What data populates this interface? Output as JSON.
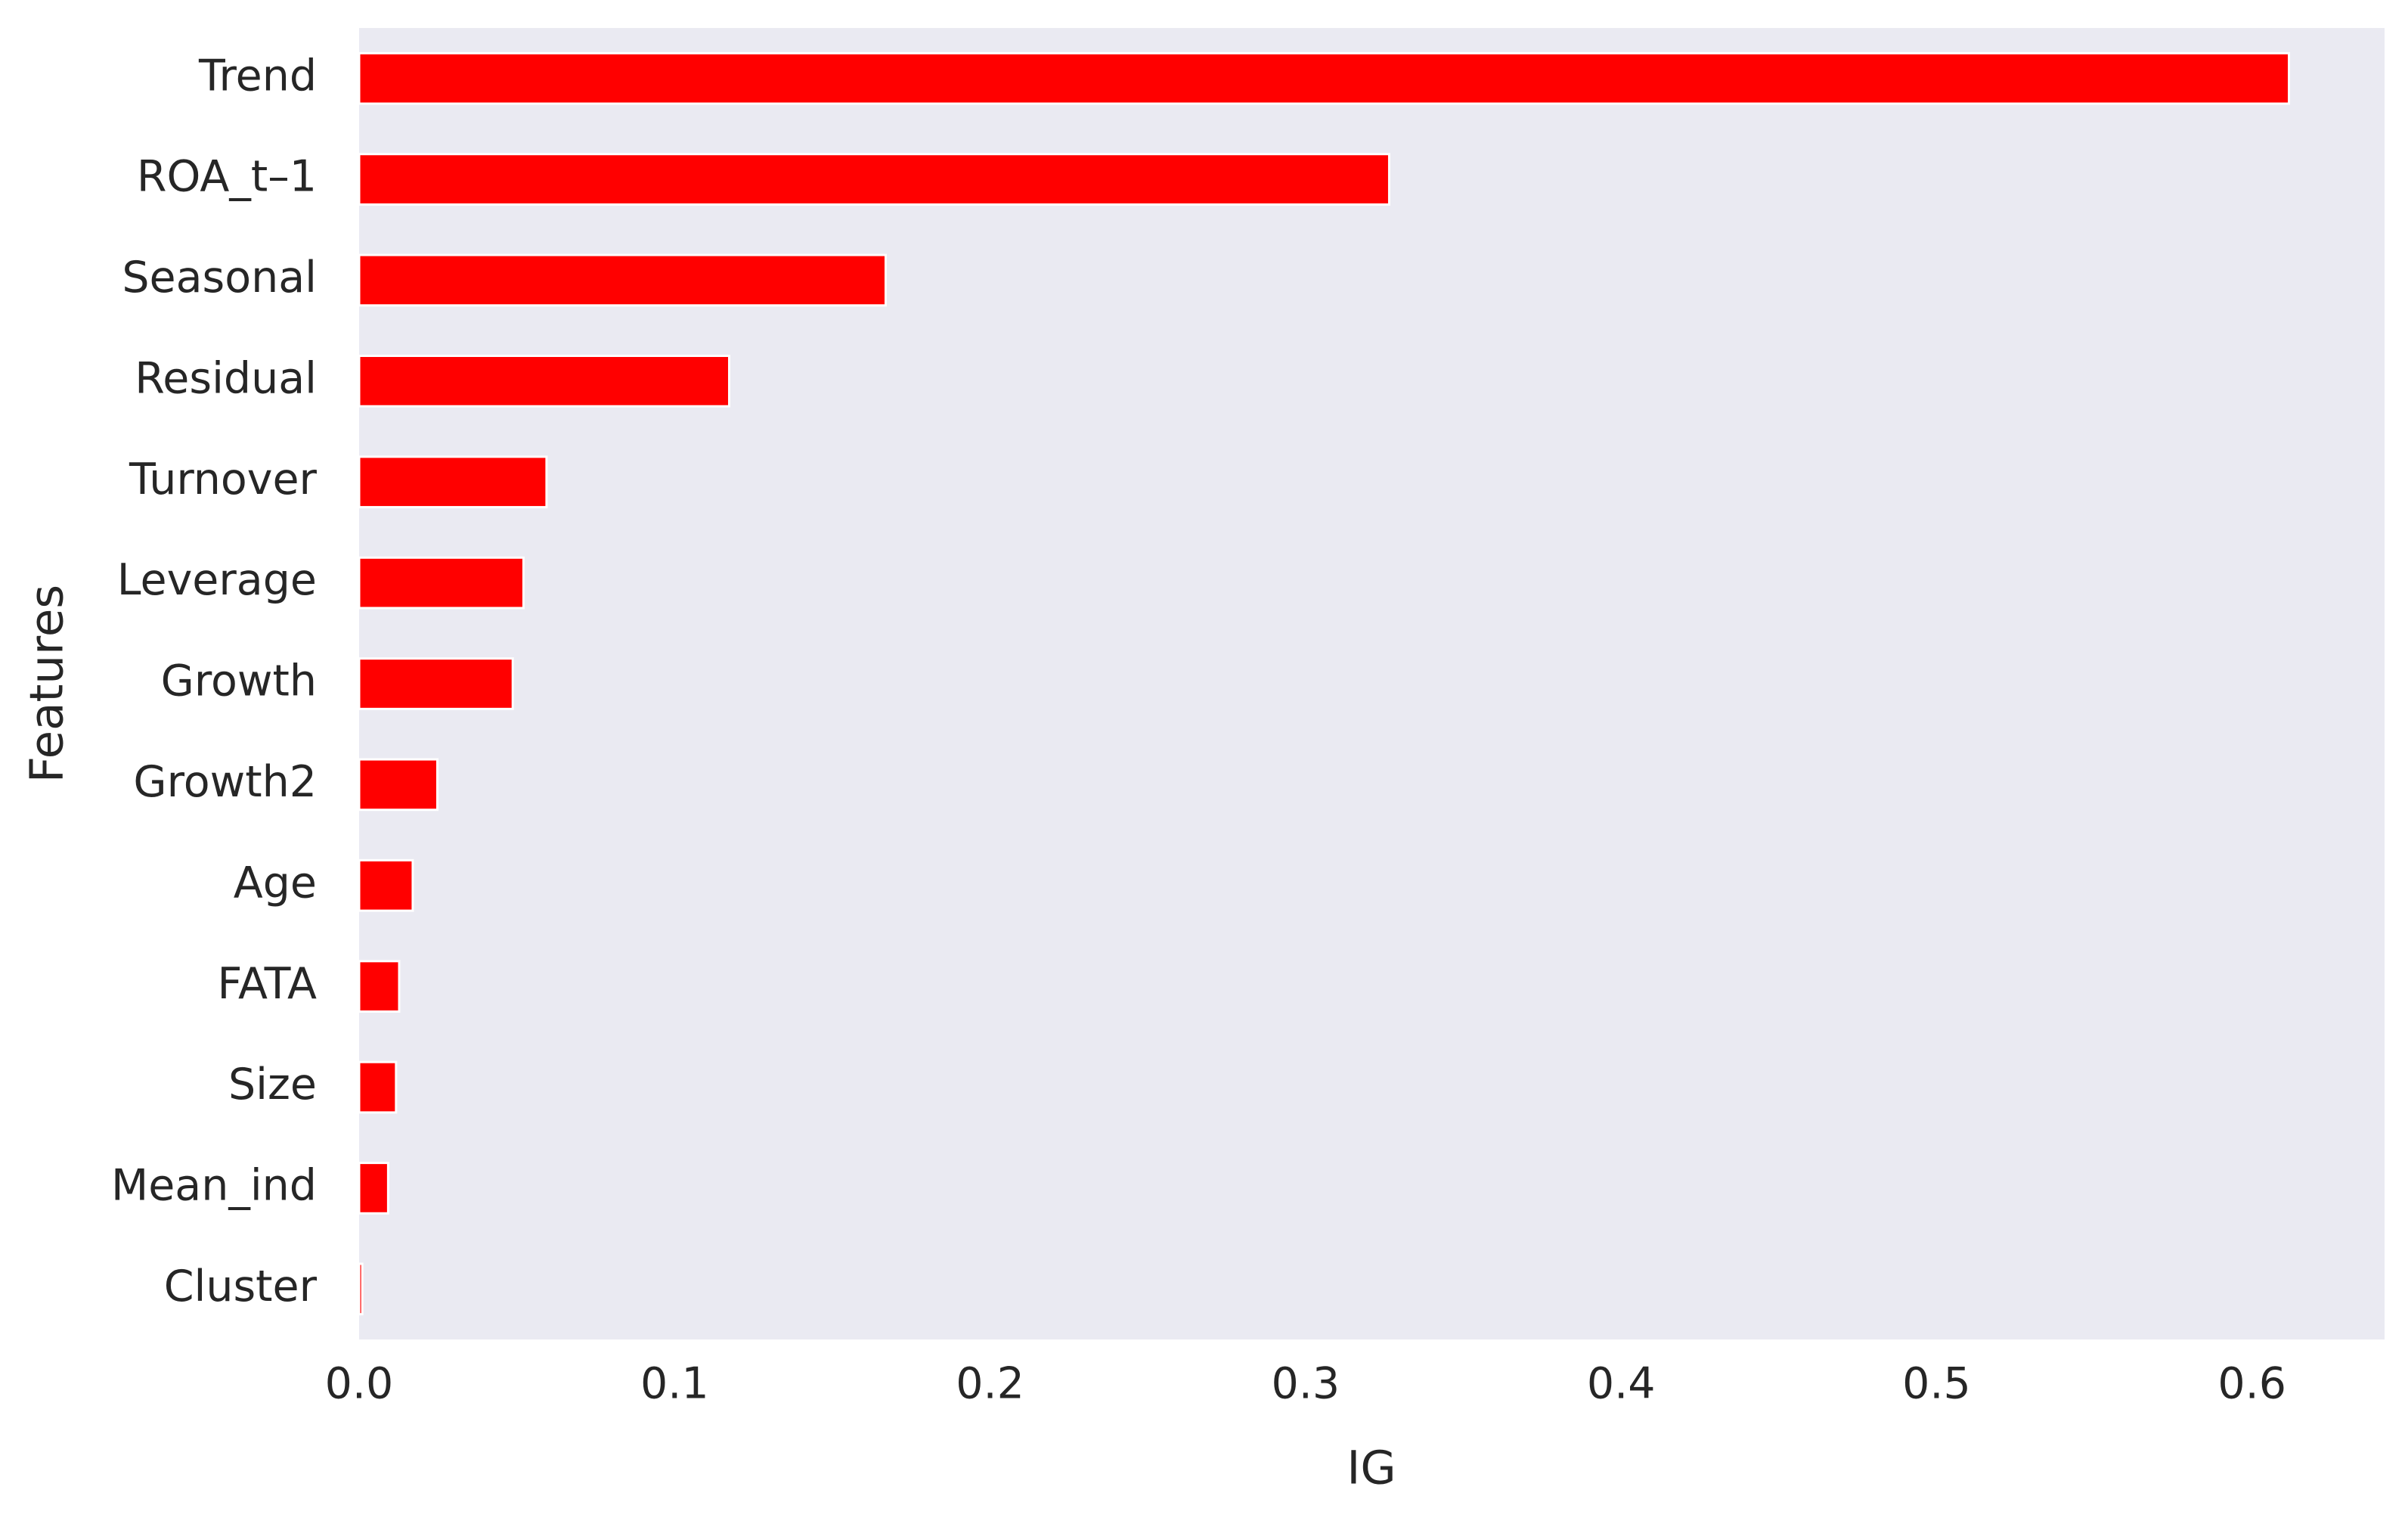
{
  "chart_data": {
    "type": "barh",
    "x_label": "IG",
    "y_label": "Features",
    "categories": [
      "Trend",
      "ROA_t–1",
      "Seasonal",
      "Residual",
      "Turnover",
      "Leverage",
      "Growth",
      "Growth2",
      "Age",
      "FATA",
      "Size",
      "Mean_ind",
      "Cluster"
    ],
    "values": [
      0.6117,
      0.3265,
      0.1669,
      0.1173,
      0.0594,
      0.0521,
      0.0487,
      0.0248,
      0.017,
      0.0127,
      0.0117,
      0.0092,
      0.001
    ],
    "color": "#ff0000",
    "xlim": [
      0,
      0.642
    ],
    "xticks": [
      {
        "value": 0,
        "label": "0.0"
      },
      0.1,
      0.2,
      0.3,
      0.4,
      0.5,
      0.6
    ],
    "grid": false
  }
}
